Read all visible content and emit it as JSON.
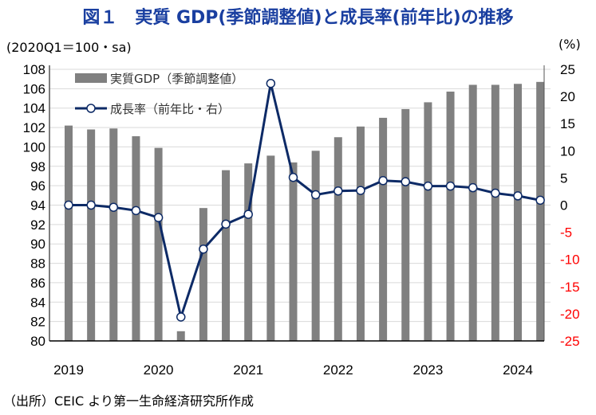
{
  "title": "図１　実質 GDP(季節調整値)と成長率(前年比)の推移",
  "left_unit": "(2020Q1＝100・sa)",
  "right_unit": "(%)",
  "source": "（出所）CEIC より第一生命経済研究所作成",
  "colors": {
    "bar": "#808080",
    "line": "#0d2a66",
    "negative_tick": "#ff0000",
    "title": "#1a3fa0"
  },
  "chart_data": {
    "type": "bar+line",
    "categories": [
      "2019Q1",
      "2019Q2",
      "2019Q3",
      "2019Q4",
      "2020Q1",
      "2020Q2",
      "2020Q3",
      "2020Q4",
      "2021Q1",
      "2021Q2",
      "2021Q3",
      "2021Q4",
      "2022Q1",
      "2022Q2",
      "2022Q3",
      "2022Q4",
      "2023Q1",
      "2023Q2",
      "2023Q3",
      "2023Q4",
      "2024Q1",
      "2024Q2"
    ],
    "x_tick_labels": [
      "2019",
      "2020",
      "2021",
      "2022",
      "2023",
      "2024"
    ],
    "series": [
      {
        "name": "実質GDP（季節調整値）",
        "type": "bar",
        "axis": "left",
        "values": [
          102.2,
          101.8,
          101.9,
          101.1,
          99.9,
          81.0,
          93.7,
          97.6,
          98.3,
          99.1,
          98.4,
          99.6,
          101.0,
          102.1,
          103.0,
          103.9,
          104.6,
          105.7,
          106.4,
          106.4,
          106.5,
          106.7
        ]
      },
      {
        "name": "成長率（前年比・右）",
        "type": "line",
        "axis": "right",
        "values": [
          0.0,
          0.0,
          -0.4,
          -1.0,
          -2.3,
          -20.6,
          -8.1,
          -3.5,
          -1.7,
          22.4,
          5.1,
          1.9,
          2.6,
          2.7,
          4.5,
          4.3,
          3.5,
          3.5,
          3.2,
          2.2,
          1.7,
          0.9
        ]
      }
    ],
    "left_axis": {
      "ylim": [
        80,
        108
      ],
      "ticks": [
        "80",
        "82",
        "84",
        "86",
        "88",
        "90",
        "92",
        "94",
        "96",
        "98",
        "100",
        "102",
        "104",
        "106",
        "108"
      ]
    },
    "right_axis": {
      "ylim": [
        -25,
        25
      ],
      "ticks": [
        "-25",
        "-20",
        "-15",
        "-10",
        "-5",
        "0",
        "5",
        "10",
        "15",
        "20",
        "25"
      ]
    },
    "grid": true,
    "legend": "top-left"
  }
}
